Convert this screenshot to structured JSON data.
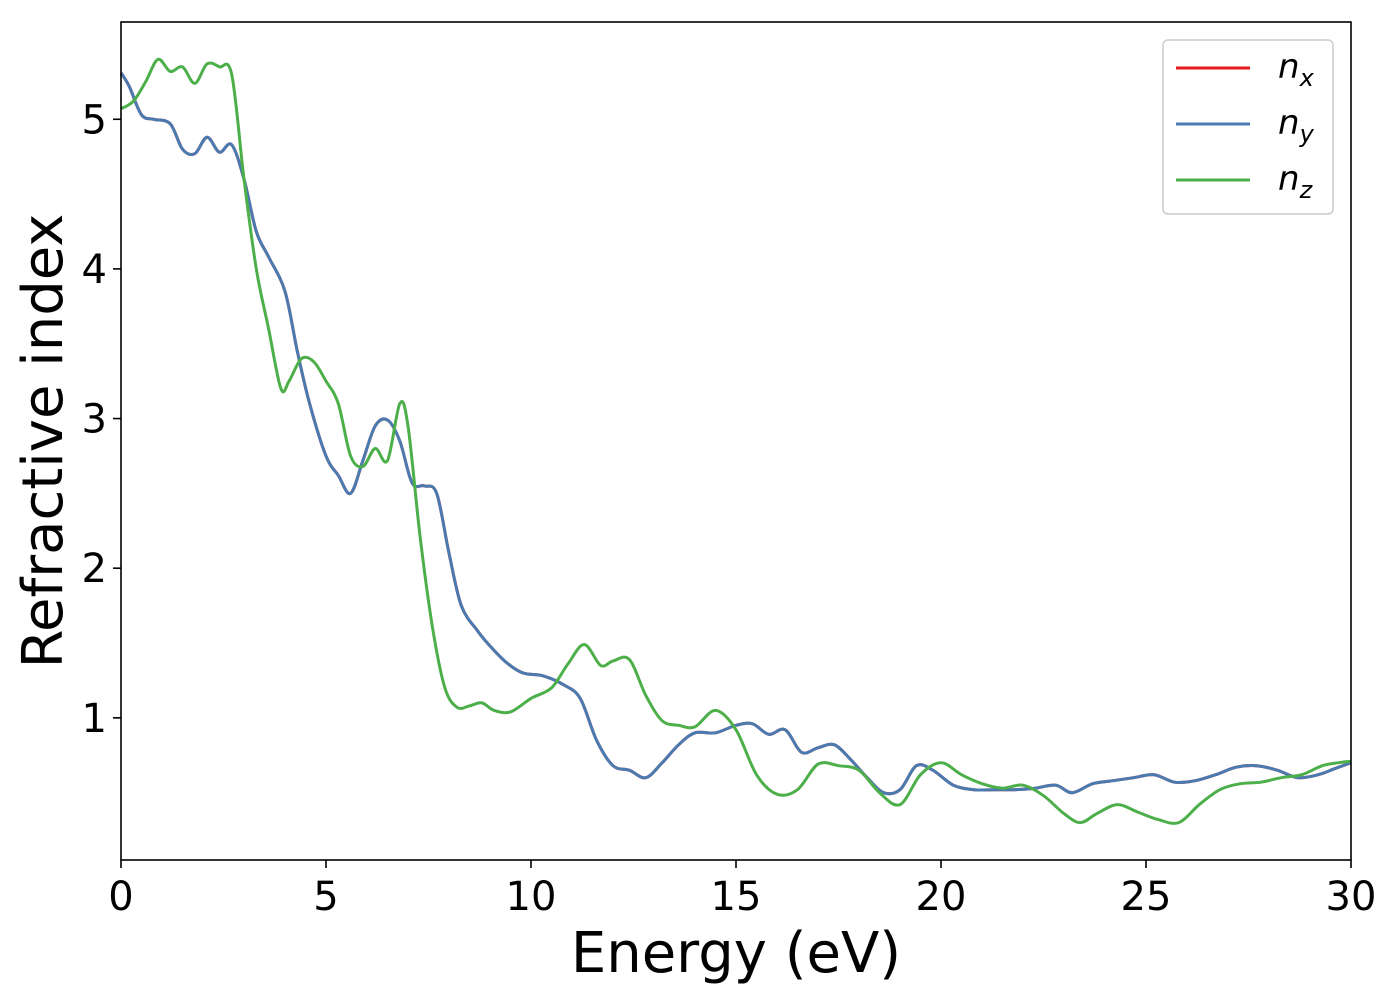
{
  "chart_data": {
    "type": "line",
    "xlabel": "Energy (eV)",
    "ylabel": "Refractive index",
    "xlim": [
      0,
      30
    ],
    "ylim": [
      0.05,
      5.65
    ],
    "xticks": [
      0,
      5,
      10,
      15,
      20,
      25,
      30
    ],
    "yticks": [
      1,
      2,
      3,
      4,
      5
    ],
    "grid": false,
    "legend_position": "top-right",
    "series": [
      {
        "name": "n_x",
        "label_base": "n",
        "label_sub": "x",
        "color": "#e41a1c",
        "x": [
          0,
          0.2,
          0.5,
          0.8,
          1.2,
          1.5,
          1.8,
          2.1,
          2.4,
          2.7,
          3.0,
          3.3,
          3.6,
          4.0,
          4.3,
          4.6,
          5.0,
          5.3,
          5.6,
          5.9,
          6.2,
          6.5,
          6.8,
          7.1,
          7.4,
          7.7,
          8.0,
          8.3,
          8.7,
          9.0,
          9.4,
          9.8,
          10.3,
          10.8,
          11.2,
          11.6,
          12.0,
          12.4,
          12.8,
          13.2,
          13.6,
          14.0,
          14.5,
          15.0,
          15.4,
          15.8,
          16.2,
          16.6,
          17.0,
          17.4,
          17.8,
          18.2,
          18.6,
          19.0,
          19.4,
          19.8,
          20.3,
          20.8,
          21.3,
          21.8,
          22.3,
          22.8,
          23.2,
          23.7,
          24.2,
          24.7,
          25.2,
          25.7,
          26.2,
          26.7,
          27.2,
          27.7,
          28.2,
          28.7,
          29.2,
          29.6,
          30.0
        ],
        "y": [
          5.31,
          5.22,
          5.03,
          5.0,
          4.97,
          4.8,
          4.77,
          4.88,
          4.78,
          4.83,
          4.6,
          4.25,
          4.08,
          3.85,
          3.45,
          3.1,
          2.75,
          2.62,
          2.5,
          2.72,
          2.95,
          2.99,
          2.85,
          2.57,
          2.55,
          2.5,
          2.1,
          1.75,
          1.58,
          1.48,
          1.37,
          1.3,
          1.28,
          1.22,
          1.13,
          0.85,
          0.68,
          0.65,
          0.6,
          0.7,
          0.82,
          0.9,
          0.9,
          0.95,
          0.96,
          0.89,
          0.92,
          0.77,
          0.8,
          0.82,
          0.72,
          0.6,
          0.5,
          0.52,
          0.68,
          0.65,
          0.55,
          0.52,
          0.52,
          0.52,
          0.53,
          0.55,
          0.5,
          0.56,
          0.58,
          0.6,
          0.62,
          0.57,
          0.58,
          0.62,
          0.67,
          0.68,
          0.65,
          0.6,
          0.62,
          0.66,
          0.7
        ]
      },
      {
        "name": "n_y",
        "label_base": "n",
        "label_sub": "y",
        "color": "#4a7bb0",
        "x": [
          0,
          0.2,
          0.5,
          0.8,
          1.2,
          1.5,
          1.8,
          2.1,
          2.4,
          2.7,
          3.0,
          3.3,
          3.6,
          4.0,
          4.3,
          4.6,
          5.0,
          5.3,
          5.6,
          5.9,
          6.2,
          6.5,
          6.8,
          7.1,
          7.4,
          7.7,
          8.0,
          8.3,
          8.7,
          9.0,
          9.4,
          9.8,
          10.3,
          10.8,
          11.2,
          11.6,
          12.0,
          12.4,
          12.8,
          13.2,
          13.6,
          14.0,
          14.5,
          15.0,
          15.4,
          15.8,
          16.2,
          16.6,
          17.0,
          17.4,
          17.8,
          18.2,
          18.6,
          19.0,
          19.4,
          19.8,
          20.3,
          20.8,
          21.3,
          21.8,
          22.3,
          22.8,
          23.2,
          23.7,
          24.2,
          24.7,
          25.2,
          25.7,
          26.2,
          26.7,
          27.2,
          27.7,
          28.2,
          28.7,
          29.2,
          29.6,
          30.0
        ],
        "y": [
          5.31,
          5.22,
          5.03,
          5.0,
          4.97,
          4.8,
          4.77,
          4.88,
          4.78,
          4.83,
          4.6,
          4.25,
          4.08,
          3.85,
          3.45,
          3.1,
          2.75,
          2.62,
          2.5,
          2.72,
          2.95,
          2.99,
          2.85,
          2.57,
          2.55,
          2.5,
          2.1,
          1.75,
          1.58,
          1.48,
          1.37,
          1.3,
          1.28,
          1.22,
          1.13,
          0.85,
          0.68,
          0.65,
          0.6,
          0.7,
          0.82,
          0.9,
          0.9,
          0.95,
          0.96,
          0.89,
          0.92,
          0.77,
          0.8,
          0.82,
          0.72,
          0.6,
          0.5,
          0.52,
          0.68,
          0.65,
          0.55,
          0.52,
          0.52,
          0.52,
          0.53,
          0.55,
          0.5,
          0.56,
          0.58,
          0.6,
          0.62,
          0.57,
          0.58,
          0.62,
          0.67,
          0.68,
          0.65,
          0.6,
          0.62,
          0.66,
          0.7
        ]
      },
      {
        "name": "n_z",
        "label_base": "n",
        "label_sub": "z",
        "color": "#4daf4a",
        "x": [
          0,
          0.3,
          0.6,
          0.9,
          1.2,
          1.5,
          1.8,
          2.1,
          2.4,
          2.7,
          3.0,
          3.3,
          3.6,
          3.9,
          4.1,
          4.4,
          4.7,
          5.0,
          5.3,
          5.6,
          5.9,
          6.2,
          6.5,
          6.8,
          7.0,
          7.3,
          7.6,
          7.9,
          8.2,
          8.5,
          8.8,
          9.1,
          9.5,
          10.0,
          10.5,
          10.9,
          11.3,
          11.7,
          12.0,
          12.4,
          12.8,
          13.2,
          13.6,
          14.0,
          14.5,
          15.0,
          15.5,
          16.0,
          16.5,
          17.0,
          17.5,
          18.0,
          18.5,
          19.0,
          19.5,
          20.0,
          20.5,
          21.0,
          21.5,
          22.0,
          22.5,
          23.0,
          23.4,
          23.8,
          24.3,
          24.8,
          25.3,
          25.8,
          26.3,
          26.8,
          27.3,
          27.8,
          28.3,
          28.8,
          29.3,
          29.7,
          30.0
        ],
        "y": [
          5.07,
          5.12,
          5.25,
          5.4,
          5.32,
          5.35,
          5.24,
          5.37,
          5.35,
          5.3,
          4.6,
          4.0,
          3.6,
          3.2,
          3.25,
          3.4,
          3.38,
          3.25,
          3.1,
          2.75,
          2.68,
          2.8,
          2.72,
          3.1,
          2.95,
          2.2,
          1.6,
          1.2,
          1.07,
          1.08,
          1.1,
          1.05,
          1.04,
          1.13,
          1.2,
          1.36,
          1.49,
          1.35,
          1.38,
          1.39,
          1.15,
          0.98,
          0.95,
          0.94,
          1.05,
          0.92,
          0.62,
          0.49,
          0.52,
          0.69,
          0.68,
          0.65,
          0.5,
          0.42,
          0.62,
          0.7,
          0.62,
          0.56,
          0.53,
          0.55,
          0.48,
          0.36,
          0.3,
          0.36,
          0.42,
          0.37,
          0.32,
          0.3,
          0.42,
          0.52,
          0.56,
          0.57,
          0.6,
          0.62,
          0.68,
          0.7,
          0.71
        ]
      }
    ]
  }
}
